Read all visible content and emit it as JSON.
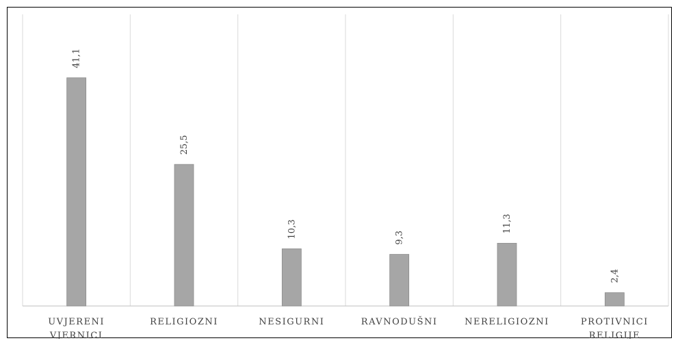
{
  "chart_data": {
    "type": "bar",
    "categories": [
      [
        "UVJERENI",
        "VJERNICI"
      ],
      [
        "RELIGIOZNI"
      ],
      [
        "NESIGURNI"
      ],
      [
        "RAVNODUŠNI"
      ],
      [
        "NERELIGIOZNI"
      ],
      [
        "PROTIVNICI",
        "RELIGIJE"
      ]
    ],
    "values": [
      41.1,
      25.5,
      10.3,
      9.3,
      11.3,
      2.4
    ],
    "value_labels": [
      "41,1",
      "25,5",
      "10,3",
      "9,3",
      "11,3",
      "2,4"
    ],
    "ylim": [
      0,
      45
    ],
    "grid": "vertical category separators",
    "legend": "none",
    "bar_color": "#a6a6a6",
    "bar_edge_color": "#8c8c8c",
    "grid_color": "#d9d9d9",
    "axis_color": "#bfbfbf",
    "text_color": "#404040"
  }
}
